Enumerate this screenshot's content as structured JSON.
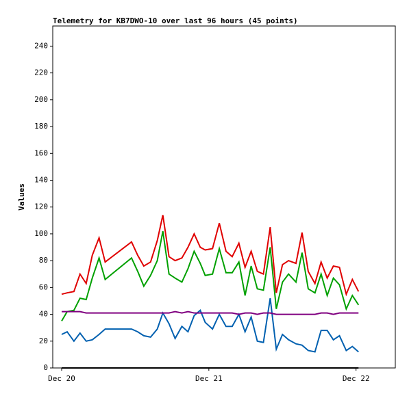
{
  "chart_data": {
    "type": "line",
    "title": "Telemetry for KB7DWO-10 over last 96 hours (45 points)",
    "y_label": "Values",
    "x": [
      0,
      0.9,
      2.0,
      3.0,
      4.0,
      5.0,
      6.1,
      7.1,
      11.4,
      12.4,
      13.4,
      14.5,
      15.6,
      16.5,
      17.5,
      18.5,
      19.6,
      20.6,
      21.6,
      22.6,
      23.4,
      24.6,
      25.7,
      26.8,
      27.8,
      28.9,
      29.9,
      30.9,
      31.9,
      32.9,
      34.0,
      35.0,
      36.0,
      37.0,
      38.2,
      39.2,
      40.2,
      41.3,
      42.3,
      43.3,
      44.3,
      45.3,
      46.4,
      47.4,
      48.4
    ],
    "series": [
      {
        "color": "#e00000",
        "values": [
          55,
          56,
          57,
          70,
          63,
          84,
          97,
          79,
          94,
          84,
          76,
          79,
          95,
          114,
          83,
          80,
          82,
          90,
          100,
          90,
          88,
          89,
          108,
          87,
          83,
          93,
          75,
          87,
          72,
          70,
          105,
          56,
          77,
          80,
          78,
          101,
          72,
          63,
          79,
          67,
          76,
          75,
          55,
          66,
          57
        ]
      },
      {
        "color": "#00a000",
        "values": [
          35,
          42,
          43,
          52,
          51,
          67,
          82,
          66,
          82,
          72,
          61,
          69,
          80,
          102,
          70,
          67,
          64,
          74,
          87,
          78,
          69,
          70,
          89,
          71,
          71,
          79,
          54,
          76,
          59,
          58,
          90,
          44,
          64,
          70,
          64,
          86,
          59,
          56,
          70,
          54,
          67,
          62,
          44,
          54,
          47
        ]
      },
      {
        "color": "#0060b0",
        "values": [
          25,
          27,
          20,
          26,
          20,
          21,
          25,
          29,
          29,
          27,
          24,
          23,
          29,
          41,
          33,
          22,
          31,
          27,
          39,
          43,
          34,
          29,
          40,
          31,
          31,
          40,
          27,
          38,
          20,
          19,
          52,
          14,
          25,
          21,
          18,
          17,
          13,
          12,
          28,
          28,
          21,
          24,
          13,
          16,
          12
        ]
      },
      {
        "color": "#800080",
        "values": [
          42,
          42,
          42,
          42,
          41,
          41,
          41,
          41,
          41,
          41,
          41,
          41,
          41,
          41,
          41,
          42,
          41,
          42,
          41,
          41,
          41,
          41,
          41,
          41,
          41,
          40,
          41,
          41,
          40,
          41,
          41,
          40,
          40,
          40,
          40,
          40,
          40,
          40,
          41,
          41,
          40,
          41,
          41,
          41,
          41
        ]
      },
      {
        "color": "#000000",
        "values": [
          0,
          0,
          0,
          0,
          0,
          0,
          0,
          0,
          0,
          0,
          0,
          0,
          0,
          0,
          0,
          0,
          0,
          0,
          0,
          0,
          0,
          0,
          0,
          0,
          0,
          0,
          0,
          0,
          0,
          0,
          0,
          0,
          0,
          0,
          0,
          0,
          0,
          0,
          0,
          0,
          0,
          0,
          0,
          0,
          0
        ]
      }
    ],
    "xlim": [
      -1.45,
      54.4
    ],
    "xticks": [
      {
        "value": 0,
        "label": "Dec 20"
      },
      {
        "value": 24,
        "label": "Dec 21"
      },
      {
        "value": 48,
        "label": "Dec 22"
      }
    ],
    "ylim": [
      0,
      255
    ],
    "yticks": [
      0,
      20,
      40,
      60,
      80,
      100,
      120,
      140,
      160,
      180,
      200,
      220,
      240
    ],
    "grid": false
  }
}
